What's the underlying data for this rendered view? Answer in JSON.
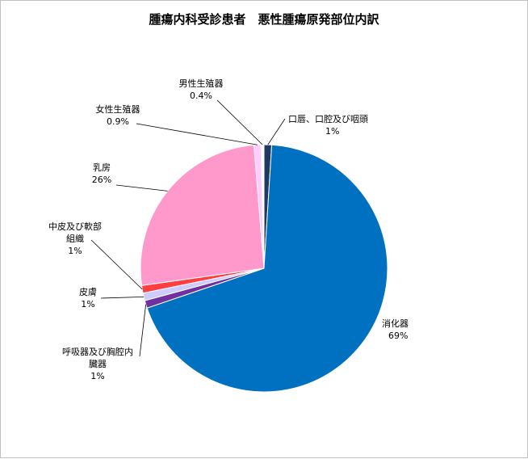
{
  "chart_data": {
    "type": "pie",
    "title": "腫瘍内科受診患者　悪性腫瘍原発部位内訳",
    "slices": [
      {
        "name": "口唇、口腔及び咽頭",
        "value": 1,
        "display": "1%",
        "color": "#1f3864"
      },
      {
        "name": "消化器",
        "value": 69,
        "display": "69%",
        "color": "#0070c0"
      },
      {
        "name": "呼吸器及び胸腔内臓器",
        "value": 1,
        "display": "1%",
        "color": "#7030a0"
      },
      {
        "name": "皮膚",
        "value": 1,
        "display": "1%",
        "color": "#ccccff"
      },
      {
        "name": "中皮及び軟部組織",
        "value": 1,
        "display": "1%",
        "color": "#ff3f3f"
      },
      {
        "name": "乳房",
        "value": 26,
        "display": "26%",
        "color": "#ff99cc"
      },
      {
        "name": "女性生殖器",
        "value": 0.9,
        "display": "0.9%",
        "color": "#ffccff"
      },
      {
        "name": "男性生殖器",
        "value": 0.4,
        "display": "0.4%",
        "color": "#ffffff"
      }
    ],
    "label_lines": [
      [
        "口唇、口腔及び咽頭"
      ],
      [
        "消化器"
      ],
      [
        "呼吸器及び胸腔内",
        "臓器"
      ],
      [
        "皮膚"
      ],
      [
        "中皮及び軟部",
        "組織"
      ],
      [
        "乳房"
      ],
      [
        "女性生殖器"
      ],
      [
        "男性生殖器"
      ]
    ]
  }
}
